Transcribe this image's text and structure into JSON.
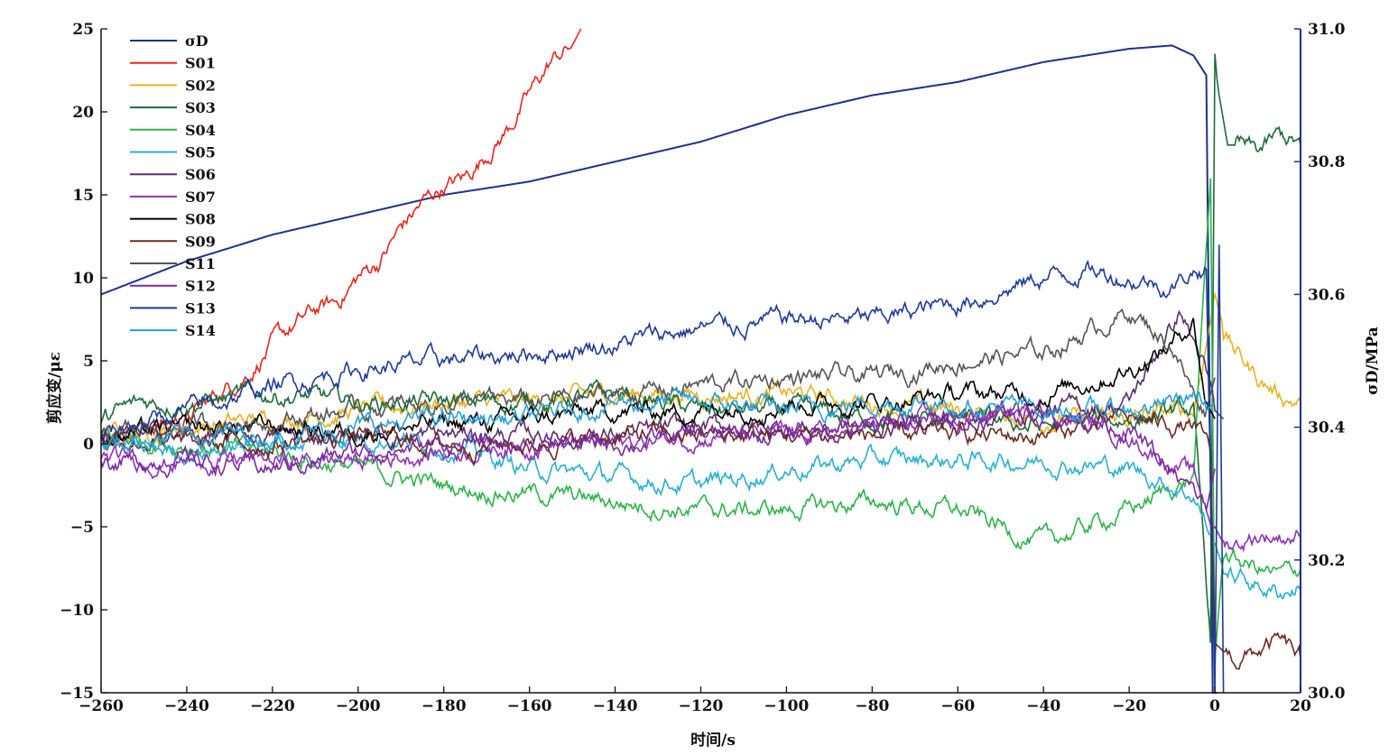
{
  "chart_data": {
    "type": "line",
    "xlabel": "时间/s",
    "ylabel_left": "剪应变/με",
    "ylabel_right": "σD/MPa",
    "xlim": [
      -260,
      20
    ],
    "ylim_left": [
      -15,
      25
    ],
    "ylim_right": [
      30.0,
      31.0
    ],
    "x_ticks": [
      -260,
      -240,
      -220,
      -200,
      -180,
      -160,
      -140,
      -120,
      -100,
      -80,
      -60,
      -40,
      -20,
      0,
      20
    ],
    "y_left_ticks": [
      -15,
      -10,
      -5,
      0,
      5,
      10,
      15,
      20,
      25
    ],
    "y_right_ticks": [
      30.0,
      30.2,
      30.4,
      30.6,
      30.8,
      31.0
    ],
    "grid": false,
    "legend_position": "top-left",
    "series": [
      {
        "name": "σD",
        "axis": "right",
        "color": "#1f2f8f",
        "x": [
          -260,
          -240,
          -220,
          -200,
          -180,
          -160,
          -140,
          -120,
          -100,
          -80,
          -60,
          -40,
          -20,
          -10,
          -5,
          -2,
          -0.5,
          0.5
        ],
        "y": [
          30.6,
          30.65,
          30.69,
          30.72,
          30.75,
          30.77,
          30.8,
          30.83,
          30.87,
          30.9,
          30.92,
          30.95,
          30.97,
          30.975,
          30.96,
          30.93,
          30.0,
          30.0
        ]
      },
      {
        "name": "S01",
        "axis": "left",
        "color": "#e8261e",
        "x": [
          -260,
          -250,
          -240,
          -235,
          -230,
          -225,
          -220,
          -215,
          -210,
          -205,
          -200,
          -195,
          -190,
          -185,
          -180,
          -175,
          -170,
          -165,
          -160,
          -155,
          -150,
          -148
        ],
        "y": [
          0.5,
          1.0,
          1.5,
          2.5,
          3.5,
          4.5,
          6.0,
          7.0,
          8.0,
          8.5,
          10.0,
          11.0,
          13.0,
          14.5,
          15.5,
          16.0,
          17.5,
          19.0,
          21.0,
          23.0,
          24.0,
          25.0
        ]
      },
      {
        "name": "S02",
        "axis": "left",
        "color": "#e8b21f",
        "x": [
          -260,
          -240,
          -220,
          -200,
          -180,
          -160,
          -140,
          -120,
          -100,
          -80,
          -60,
          -40,
          -20,
          -5,
          0,
          2,
          5,
          10,
          15,
          20
        ],
        "y": [
          0.5,
          1.0,
          1.5,
          2.0,
          2.5,
          2.5,
          3.0,
          3.0,
          3.0,
          2.5,
          2.0,
          1.5,
          1.5,
          2.0,
          9.0,
          7.0,
          5.5,
          4.0,
          3.0,
          2.5
        ]
      },
      {
        "name": "S03",
        "axis": "left",
        "color": "#1d6b3a",
        "x": [
          -260,
          -250,
          -240,
          -220,
          -200,
          -180,
          -160,
          -140,
          -120,
          -100,
          -80,
          -60,
          -40,
          -20,
          -5,
          -1,
          0,
          0.5,
          1,
          3,
          5,
          10,
          15,
          20
        ],
        "y": [
          1.5,
          2.5,
          2.5,
          3.0,
          2.5,
          2.5,
          2.5,
          3.0,
          2.0,
          2.0,
          1.5,
          1.5,
          1.0,
          1.5,
          2.0,
          -12.0,
          23.5,
          22.0,
          21.0,
          18.0,
          18.0,
          17.5,
          18.5,
          18.0
        ]
      },
      {
        "name": "S04",
        "axis": "left",
        "color": "#2db34a",
        "x": [
          -260,
          -240,
          -220,
          -200,
          -180,
          -160,
          -140,
          -120,
          -100,
          -80,
          -60,
          -40,
          -20,
          -5,
          -1,
          0,
          2,
          5,
          10,
          15,
          20
        ],
        "y": [
          0.5,
          0.0,
          -0.5,
          -1.5,
          -2.5,
          -3.0,
          -3.5,
          -4.0,
          -4.0,
          -3.5,
          -4.0,
          -6.0,
          -4.0,
          -2.0,
          16.0,
          -13.0,
          -6.5,
          -7.0,
          -7.5,
          -8.0,
          -7.5
        ]
      },
      {
        "name": "S05",
        "axis": "left",
        "color": "#29b0d0",
        "x": [
          -260,
          -240,
          -220,
          -200,
          -180,
          -160,
          -140,
          -120,
          -100,
          -80,
          -60,
          -40,
          -20,
          -5,
          0,
          2,
          5,
          10,
          15,
          20
        ],
        "y": [
          0.0,
          -0.5,
          0.0,
          0.5,
          0.0,
          -1.5,
          -2.0,
          -2.5,
          -1.5,
          -1.0,
          -1.0,
          -1.0,
          -1.5,
          -3.0,
          -6.0,
          -7.5,
          -8.0,
          -8.5,
          -9.0,
          -8.5
        ]
      },
      {
        "name": "S06",
        "axis": "left",
        "color": "#5a2f6a",
        "x": [
          -260,
          -240,
          -220,
          -200,
          -180,
          -160,
          -140,
          -120,
          -100,
          -80,
          -60,
          -40,
          -20,
          -8,
          -3,
          0,
          2
        ],
        "y": [
          0.5,
          0.5,
          0.5,
          0.5,
          0.5,
          0.5,
          0.5,
          1.0,
          1.0,
          1.0,
          1.5,
          2.0,
          2.5,
          8.0,
          5.0,
          2.0,
          1.5
        ]
      },
      {
        "name": "S07",
        "axis": "left",
        "color": "#8e32b8",
        "x": [
          -260,
          -240,
          -220,
          -200,
          -180,
          -160,
          -140,
          -120,
          -100,
          -80,
          -60,
          -40,
          -20,
          -5,
          0,
          2,
          5,
          10,
          15,
          20
        ],
        "y": [
          -1.0,
          -1.0,
          -1.0,
          -1.0,
          -0.5,
          0.0,
          0.0,
          0.5,
          0.5,
          1.0,
          1.5,
          2.0,
          0.5,
          -2.0,
          -5.0,
          -6.0,
          -6.0,
          -5.5,
          -5.5,
          -5.5
        ]
      },
      {
        "name": "S08",
        "axis": "left",
        "color": "#000000",
        "x": [
          -260,
          -240,
          -220,
          -200,
          -180,
          -160,
          -140,
          -120,
          -100,
          -80,
          -60,
          -40,
          -20,
          -10,
          -5,
          -2,
          0
        ],
        "y": [
          0.5,
          0.8,
          1.0,
          0.8,
          1.2,
          1.5,
          2.0,
          2.0,
          2.5,
          2.5,
          3.0,
          3.0,
          4.5,
          6.0,
          7.5,
          2.5,
          1.5
        ]
      },
      {
        "name": "S09",
        "axis": "left",
        "color": "#6b2a22",
        "x": [
          -260,
          -240,
          -220,
          -200,
          -180,
          -160,
          -140,
          -120,
          -100,
          -80,
          -60,
          -40,
          -20,
          -5,
          -1,
          0,
          2,
          5,
          10,
          15,
          20
        ],
        "y": [
          0.5,
          0.0,
          0.0,
          0.5,
          0.0,
          0.0,
          0.5,
          0.5,
          0.5,
          0.5,
          0.5,
          0.5,
          1.5,
          1.0,
          -0.5,
          -12.0,
          -12.5,
          -13.0,
          -12.5,
          -12.0,
          -13.0
        ]
      },
      {
        "name": "S11",
        "axis": "left",
        "color": "#555555",
        "x": [
          -260,
          -240,
          -220,
          -200,
          -180,
          -160,
          -140,
          -120,
          -100,
          -80,
          -60,
          -40,
          -20,
          -10,
          -5,
          -2,
          0
        ],
        "y": [
          0.5,
          1.0,
          1.5,
          2.0,
          2.5,
          2.5,
          3.0,
          3.5,
          4.0,
          4.0,
          5.0,
          5.5,
          8.0,
          6.0,
          3.0,
          2.0,
          4.0
        ]
      },
      {
        "name": "S12",
        "axis": "left",
        "color": "#7a2a9c",
        "x": [
          -260,
          -240,
          -220,
          -200,
          -180,
          -160,
          -140,
          -120,
          -100,
          -80,
          -60,
          -40,
          -20,
          -10,
          -5,
          -2,
          0
        ],
        "y": [
          -1.0,
          -1.0,
          -1.5,
          -0.5,
          0.0,
          0.0,
          0.0,
          0.5,
          0.5,
          1.0,
          1.5,
          2.0,
          1.0,
          -2.0,
          -3.0,
          -4.0,
          -1.5
        ]
      },
      {
        "name": "S13",
        "axis": "left",
        "color": "#1e3a9a",
        "x": [
          -260,
          -240,
          -220,
          -200,
          -180,
          -160,
          -140,
          -120,
          -100,
          -80,
          -60,
          -40,
          -30,
          -20,
          -10,
          -5,
          -2,
          0,
          1,
          2
        ],
        "y": [
          0.5,
          2.0,
          3.5,
          4.5,
          5.0,
          5.5,
          6.0,
          7.0,
          7.5,
          7.5,
          8.5,
          10.0,
          10.5,
          10.0,
          9.5,
          10.5,
          10.5,
          -15.0,
          12.0,
          -15.0
        ]
      },
      {
        "name": "S14",
        "axis": "left",
        "color": "#2a9fd6",
        "x": [
          -260,
          -240,
          -220,
          -200,
          -180,
          -160,
          -140,
          -120,
          -100,
          -80,
          -60,
          -40,
          -20,
          -10,
          -5,
          -2,
          0
        ],
        "y": [
          0.0,
          0.5,
          0.5,
          1.0,
          1.5,
          1.5,
          2.5,
          2.5,
          2.0,
          2.5,
          2.5,
          2.0,
          2.0,
          2.5,
          3.0,
          2.0,
          2.5
        ]
      }
    ]
  }
}
